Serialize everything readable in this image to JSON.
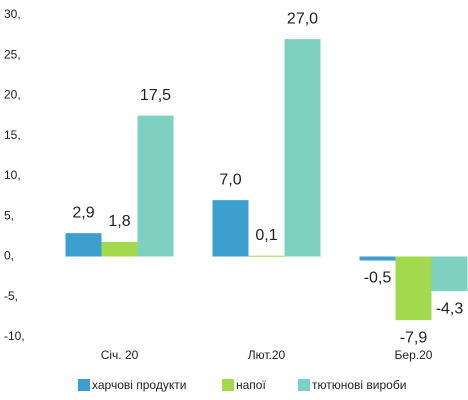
{
  "chart_data": {
    "type": "bar",
    "categories": [
      "Січ. 20",
      "Лют.20",
      "Бер.20"
    ],
    "series": [
      {
        "name": "харчові продукти",
        "color": "#3d9fce",
        "values": [
          2.9,
          7.0,
          -0.5
        ],
        "value_labels": [
          "2,9",
          "7,0",
          "-0,5"
        ]
      },
      {
        "name": "напої",
        "color": "#a3d94c",
        "values": [
          1.8,
          0.1,
          -7.9
        ],
        "value_labels": [
          "1,8",
          "0,1",
          "-7,9"
        ]
      },
      {
        "name": "тютюнові вироби",
        "color": "#7ed0c0",
        "values": [
          17.5,
          27.0,
          -4.3
        ],
        "value_labels": [
          "17,5",
          "27,0",
          "-4,3"
        ]
      }
    ],
    "ylim": [
      -10,
      30
    ],
    "yticks": [
      {
        "value": -10,
        "label": "-10,"
      },
      {
        "value": -5,
        "label": "-5,"
      },
      {
        "value": 0,
        "label": "0,"
      },
      {
        "value": 5,
        "label": "5,"
      },
      {
        "value": 10,
        "label": "10,"
      },
      {
        "value": 15,
        "label": "15,"
      },
      {
        "value": 20,
        "label": "20,"
      },
      {
        "value": 25,
        "label": "25,"
      },
      {
        "value": 30,
        "label": "30,"
      }
    ],
    "grid": false,
    "legend": "bottom"
  }
}
